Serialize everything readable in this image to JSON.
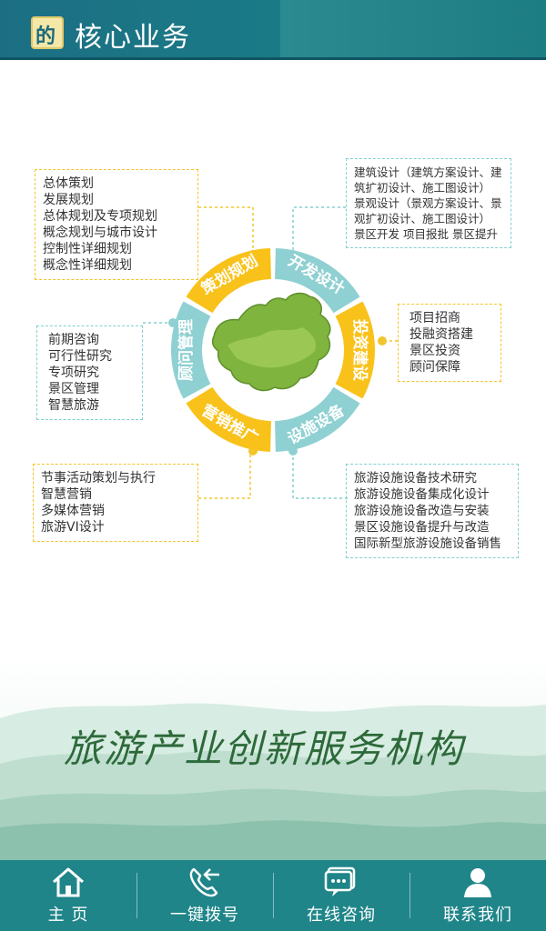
{
  "header": {
    "logo_text": "的",
    "title": "核心业务"
  },
  "wheel": {
    "segments": [
      {
        "label": "策划规划",
        "color": "#f9c21b"
      },
      {
        "label": "开发设计",
        "color": "#8fd0d2"
      },
      {
        "label": "投资建设",
        "color": "#f9c21b"
      },
      {
        "label": "设施设备",
        "color": "#8fd0d2"
      },
      {
        "label": "营销推广",
        "color": "#f9c21b"
      },
      {
        "label": "顾问管理",
        "color": "#8fd0d2"
      }
    ]
  },
  "boxes": {
    "planning": [
      "总体策划",
      "发展规划",
      "总体规划及专项规划",
      "概念规划与城市设计",
      "控制性详细规划",
      "概念性详细规划"
    ],
    "design": [
      "建筑设计（建筑方案设计、建",
      "筑扩初设计、施工图设计）",
      "景观设计（景观方案设计、景",
      "观扩初设计、施工图设计）",
      "景区开发 项目报批 景区提升"
    ],
    "investment": [
      "项目招商",
      "投融资搭建",
      "景区投资",
      "顾问保障"
    ],
    "consulting": [
      "前期咨询",
      "可行性研究",
      "专项研究",
      "景区管理",
      "智慧旅游"
    ],
    "marketing": [
      "节事活动策划与执行",
      "智慧营销",
      "多媒体营销",
      "旅游VI设计"
    ],
    "facilities": [
      "旅游设施设备技术研究",
      "旅游设施设备集成化设计",
      "旅游设施设备改造与安装",
      "景区设施设备提升与改造",
      "国际新型旅游设施设备销售"
    ]
  },
  "slogan": "旅游产业创新服务机构",
  "nav": [
    {
      "label": "主 页",
      "icon": "home-icon"
    },
    {
      "label": "一键拨号",
      "icon": "phone-icon"
    },
    {
      "label": "在线咨询",
      "icon": "chat-icon"
    },
    {
      "label": "联系我们",
      "icon": "user-icon"
    }
  ],
  "colors": {
    "header": "#1c6f83",
    "nav": "#1f8589",
    "yellow": "#f9c21b",
    "teal": "#8fd0d2",
    "slogan": "#2d6a3a"
  }
}
